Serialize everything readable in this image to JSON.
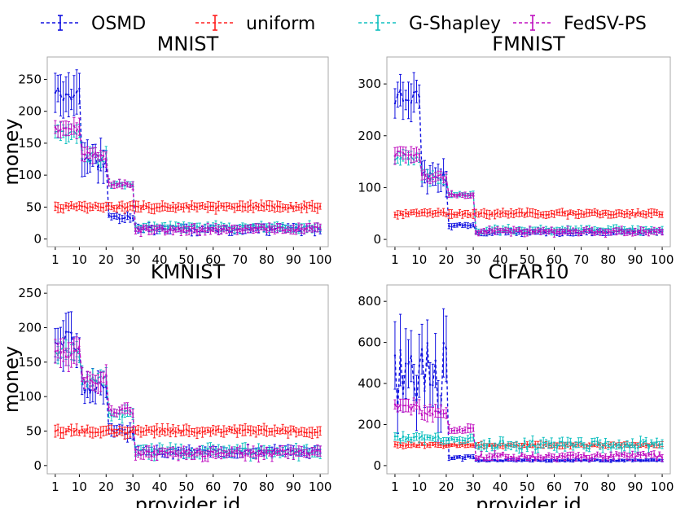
{
  "colors": {
    "OSMD": "#1010e0",
    "uniform": "#ff2020",
    "G-Shapley": "#10c0c0",
    "FedSV-PS": "#c010c0"
  },
  "chart_data": [
    {
      "type": "line",
      "title": "MNIST",
      "xlabel": "",
      "ylabel": "money",
      "xlim": [
        -2,
        103
      ],
      "ylim": [
        -12,
        285
      ],
      "xticks": [
        1,
        10,
        20,
        30,
        40,
        50,
        60,
        70,
        80,
        90,
        100
      ],
      "yticks": [
        0,
        50,
        100,
        150,
        200,
        250
      ],
      "x": [
        1,
        100
      ],
      "series": [
        {
          "name": "OSMD",
          "style": "dashed",
          "error_bars": true,
          "segments": [
            {
              "from": 1,
              "to": 10,
              "mean": 225,
              "err": 28,
              "jitter": 12
            },
            {
              "from": 11,
              "to": 20,
              "mean": 120,
              "err": 22,
              "jitter": 15
            },
            {
              "from": 21,
              "to": 30,
              "mean": 35,
              "err": 6,
              "jitter": 4
            },
            {
              "from": 31,
              "to": 100,
              "mean": 15,
              "err": 6,
              "jitter": 4
            }
          ]
        },
        {
          "name": "uniform",
          "style": "dashed",
          "error_bars": true,
          "segments": [
            {
              "from": 1,
              "to": 100,
              "mean": 50,
              "err": 7,
              "jitter": 3
            }
          ]
        },
        {
          "name": "G-Shapley",
          "style": "dashed",
          "error_bars": true,
          "segments": [
            {
              "from": 1,
              "to": 10,
              "mean": 165,
              "err": 12,
              "jitter": 6
            },
            {
              "from": 11,
              "to": 20,
              "mean": 130,
              "err": 10,
              "jitter": 6
            },
            {
              "from": 21,
              "to": 30,
              "mean": 86,
              "err": 5,
              "jitter": 3
            },
            {
              "from": 31,
              "to": 100,
              "mean": 18,
              "err": 6,
              "jitter": 4
            }
          ]
        },
        {
          "name": "FedSV-PS",
          "style": "dashed",
          "error_bars": true,
          "segments": [
            {
              "from": 1,
              "to": 10,
              "mean": 172,
              "err": 15,
              "jitter": 6
            },
            {
              "from": 11,
              "to": 20,
              "mean": 130,
              "err": 10,
              "jitter": 6
            },
            {
              "from": 21,
              "to": 30,
              "mean": 86,
              "err": 5,
              "jitter": 3
            },
            {
              "from": 31,
              "to": 100,
              "mean": 15,
              "err": 6,
              "jitter": 4
            }
          ]
        }
      ]
    },
    {
      "type": "line",
      "title": "FMNIST",
      "xlabel": "",
      "ylabel": "",
      "xlim": [
        -2,
        103
      ],
      "ylim": [
        -14,
        352
      ],
      "xticks": [
        1,
        10,
        20,
        30,
        40,
        50,
        60,
        70,
        80,
        90,
        100
      ],
      "yticks": [
        0,
        100,
        200,
        300
      ],
      "x": [
        1,
        100
      ],
      "series": [
        {
          "name": "OSMD",
          "style": "dashed",
          "error_bars": true,
          "segments": [
            {
              "from": 1,
              "to": 10,
              "mean": 275,
              "err": 32,
              "jitter": 14
            },
            {
              "from": 11,
              "to": 20,
              "mean": 120,
              "err": 22,
              "jitter": 14
            },
            {
              "from": 21,
              "to": 30,
              "mean": 27,
              "err": 5,
              "jitter": 3
            },
            {
              "from": 31,
              "to": 100,
              "mean": 14,
              "err": 5,
              "jitter": 3
            }
          ]
        },
        {
          "name": "uniform",
          "style": "dashed",
          "error_bars": true,
          "segments": [
            {
              "from": 1,
              "to": 100,
              "mean": 50,
              "err": 7,
              "jitter": 3
            }
          ]
        },
        {
          "name": "G-Shapley",
          "style": "dashed",
          "error_bars": true,
          "segments": [
            {
              "from": 1,
              "to": 10,
              "mean": 158,
              "err": 12,
              "jitter": 6
            },
            {
              "from": 11,
              "to": 20,
              "mean": 120,
              "err": 10,
              "jitter": 6
            },
            {
              "from": 21,
              "to": 30,
              "mean": 86,
              "err": 5,
              "jitter": 3
            },
            {
              "from": 31,
              "to": 100,
              "mean": 18,
              "err": 6,
              "jitter": 4
            }
          ]
        },
        {
          "name": "FedSV-PS",
          "style": "dashed",
          "error_bars": true,
          "segments": [
            {
              "from": 1,
              "to": 10,
              "mean": 165,
              "err": 14,
              "jitter": 6
            },
            {
              "from": 11,
              "to": 20,
              "mean": 120,
              "err": 10,
              "jitter": 6
            },
            {
              "from": 21,
              "to": 30,
              "mean": 86,
              "err": 5,
              "jitter": 3
            },
            {
              "from": 31,
              "to": 100,
              "mean": 15,
              "err": 6,
              "jitter": 4
            }
          ]
        }
      ]
    },
    {
      "type": "line",
      "title": "KMNIST",
      "xlabel": "provider id",
      "ylabel": "money",
      "xlim": [
        -2,
        103
      ],
      "ylim": [
        -12,
        262
      ],
      "xticks": [
        1,
        10,
        20,
        30,
        40,
        50,
        60,
        70,
        80,
        90,
        100
      ],
      "yticks": [
        0,
        50,
        100,
        150,
        200,
        250
      ],
      "x": [
        1,
        100
      ],
      "series": [
        {
          "name": "OSMD",
          "style": "dashed",
          "error_bars": true,
          "segments": [
            {
              "from": 1,
              "to": 10,
              "mean": 180,
              "err": 30,
              "jitter": 14
            },
            {
              "from": 11,
              "to": 20,
              "mean": 115,
              "err": 20,
              "jitter": 12
            },
            {
              "from": 21,
              "to": 30,
              "mean": 50,
              "err": 10,
              "jitter": 6
            },
            {
              "from": 31,
              "to": 100,
              "mean": 20,
              "err": 6,
              "jitter": 4
            }
          ]
        },
        {
          "name": "uniform",
          "style": "dashed",
          "error_bars": true,
          "segments": [
            {
              "from": 1,
              "to": 100,
              "mean": 50,
              "err": 7,
              "jitter": 3
            }
          ]
        },
        {
          "name": "G-Shapley",
          "style": "dashed",
          "error_bars": true,
          "segments": [
            {
              "from": 1,
              "to": 10,
              "mean": 165,
              "err": 14,
              "jitter": 8
            },
            {
              "from": 11,
              "to": 20,
              "mean": 125,
              "err": 12,
              "jitter": 8
            },
            {
              "from": 21,
              "to": 30,
              "mean": 75,
              "err": 8,
              "jitter": 5
            },
            {
              "from": 31,
              "to": 100,
              "mean": 20,
              "err": 7,
              "jitter": 5
            }
          ]
        },
        {
          "name": "FedSV-PS",
          "style": "dashed",
          "error_bars": true,
          "segments": [
            {
              "from": 1,
              "to": 10,
              "mean": 165,
              "err": 18,
              "jitter": 8
            },
            {
              "from": 11,
              "to": 20,
              "mean": 125,
              "err": 12,
              "jitter": 8
            },
            {
              "from": 21,
              "to": 30,
              "mean": 80,
              "err": 8,
              "jitter": 5
            },
            {
              "from": 31,
              "to": 100,
              "mean": 18,
              "err": 7,
              "jitter": 5
            }
          ]
        }
      ]
    },
    {
      "type": "line",
      "title": "CIFAR10",
      "xlabel": "provider id",
      "ylabel": "",
      "xlim": [
        -2,
        103
      ],
      "ylim": [
        -40,
        880
      ],
      "xticks": [
        1,
        10,
        20,
        30,
        40,
        50,
        60,
        70,
        80,
        90,
        100
      ],
      "yticks": [
        0,
        200,
        400,
        600,
        800
      ],
      "x": [
        1,
        100
      ],
      "series": [
        {
          "name": "OSMD",
          "style": "dashed",
          "error_bars": true,
          "segments": [
            {
              "from": 1,
              "to": 20,
              "mean": 420,
              "err": 140,
              "jitter": 180
            },
            {
              "from": 21,
              "to": 30,
              "mean": 40,
              "err": 10,
              "jitter": 8
            },
            {
              "from": 31,
              "to": 100,
              "mean": 25,
              "err": 6,
              "jitter": 3
            }
          ]
        },
        {
          "name": "uniform",
          "style": "dashed",
          "error_bars": true,
          "segments": [
            {
              "from": 1,
              "to": 100,
              "mean": 100,
              "err": 12,
              "jitter": 5
            }
          ]
        },
        {
          "name": "G-Shapley",
          "style": "dashed",
          "error_bars": true,
          "segments": [
            {
              "from": 1,
              "to": 20,
              "mean": 130,
              "err": 20,
              "jitter": 15
            },
            {
              "from": 21,
              "to": 30,
              "mean": 125,
              "err": 15,
              "jitter": 12
            },
            {
              "from": 31,
              "to": 100,
              "mean": 100,
              "err": 20,
              "jitter": 22
            }
          ]
        },
        {
          "name": "FedSV-PS",
          "style": "dashed",
          "error_bars": true,
          "segments": [
            {
              "from": 1,
              "to": 10,
              "mean": 285,
              "err": 30,
              "jitter": 15
            },
            {
              "from": 11,
              "to": 20,
              "mean": 260,
              "err": 30,
              "jitter": 15
            },
            {
              "from": 21,
              "to": 30,
              "mean": 180,
              "err": 20,
              "jitter": 12
            },
            {
              "from": 31,
              "to": 100,
              "mean": 45,
              "err": 14,
              "jitter": 14
            }
          ]
        }
      ]
    }
  ]
}
